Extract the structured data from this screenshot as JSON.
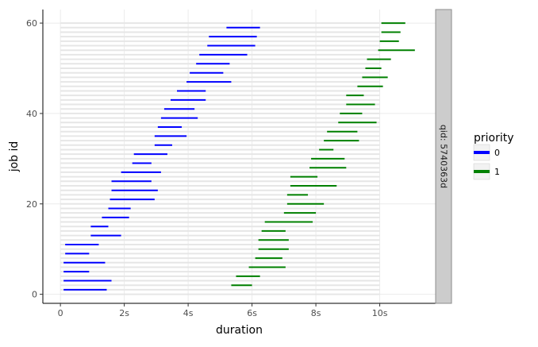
{
  "chart_data": {
    "type": "segment",
    "xlabel": "duration",
    "ylabel": "job id",
    "xlim": [
      -0.55,
      11.75
    ],
    "ylim": [
      -2,
      63
    ],
    "x_ticks": [
      {
        "value": 0,
        "label": "0"
      },
      {
        "value": 2,
        "label": "2s"
      },
      {
        "value": 4,
        "label": "4s"
      },
      {
        "value": 6,
        "label": "6s"
      },
      {
        "value": 8,
        "label": "8s"
      },
      {
        "value": 10,
        "label": "10s"
      }
    ],
    "y_ticks": [
      {
        "value": 0,
        "label": "0"
      },
      {
        "value": 20,
        "label": "20"
      },
      {
        "value": 40,
        "label": "40"
      },
      {
        "value": 60,
        "label": "60"
      }
    ],
    "facet_label": "qid: 5740363d",
    "background_bar": {
      "start": 0,
      "end": 10,
      "count": 61,
      "color": "#e6e6e6"
    },
    "legend": {
      "title": "priority",
      "placement": "right",
      "entries": [
        {
          "label": "0",
          "color": "#0000ff"
        },
        {
          "label": "1",
          "color": "#008000"
        }
      ]
    },
    "series": [
      {
        "name": "0",
        "color": "#0000ff",
        "segments": [
          {
            "job": 1,
            "start": 0.1,
            "end": 1.45
          },
          {
            "job": 3,
            "start": 0.1,
            "end": 1.6
          },
          {
            "job": 5,
            "start": 0.1,
            "end": 0.9
          },
          {
            "job": 7,
            "start": 0.1,
            "end": 1.4
          },
          {
            "job": 9,
            "start": 0.15,
            "end": 0.9
          },
          {
            "job": 11,
            "start": 0.15,
            "end": 1.2
          },
          {
            "job": 13,
            "start": 0.95,
            "end": 1.9
          },
          {
            "job": 15,
            "start": 0.95,
            "end": 1.5
          },
          {
            "job": 17,
            "start": 1.3,
            "end": 2.15
          },
          {
            "job": 19,
            "start": 1.5,
            "end": 2.2
          },
          {
            "job": 21,
            "start": 1.55,
            "end": 2.95
          },
          {
            "job": 23,
            "start": 1.6,
            "end": 3.05
          },
          {
            "job": 25,
            "start": 1.6,
            "end": 2.85
          },
          {
            "job": 27,
            "start": 1.9,
            "end": 3.15
          },
          {
            "job": 29,
            "start": 2.25,
            "end": 2.85
          },
          {
            "job": 31,
            "start": 2.3,
            "end": 3.35
          },
          {
            "job": 33,
            "start": 2.95,
            "end": 3.5
          },
          {
            "job": 35,
            "start": 2.95,
            "end": 3.95
          },
          {
            "job": 37,
            "start": 3.05,
            "end": 3.8
          },
          {
            "job": 39,
            "start": 3.15,
            "end": 4.3
          },
          {
            "job": 41,
            "start": 3.25,
            "end": 4.2
          },
          {
            "job": 43,
            "start": 3.45,
            "end": 4.55
          },
          {
            "job": 45,
            "start": 3.65,
            "end": 4.55
          },
          {
            "job": 47,
            "start": 3.95,
            "end": 5.35
          },
          {
            "job": 49,
            "start": 4.05,
            "end": 5.1
          },
          {
            "job": 51,
            "start": 4.25,
            "end": 5.3
          },
          {
            "job": 53,
            "start": 4.35,
            "end": 5.85
          },
          {
            "job": 55,
            "start": 4.6,
            "end": 6.1
          },
          {
            "job": 57,
            "start": 4.65,
            "end": 6.15
          },
          {
            "job": 59,
            "start": 5.2,
            "end": 6.25
          }
        ]
      },
      {
        "name": "1",
        "color": "#008000",
        "segments": [
          {
            "job": 2,
            "start": 5.35,
            "end": 6.0
          },
          {
            "job": 4,
            "start": 5.5,
            "end": 6.25
          },
          {
            "job": 6,
            "start": 5.9,
            "end": 7.05
          },
          {
            "job": 8,
            "start": 6.1,
            "end": 6.95
          },
          {
            "job": 10,
            "start": 6.2,
            "end": 7.15
          },
          {
            "job": 12,
            "start": 6.2,
            "end": 7.15
          },
          {
            "job": 14,
            "start": 6.3,
            "end": 7.05
          },
          {
            "job": 16,
            "start": 6.4,
            "end": 7.9
          },
          {
            "job": 18,
            "start": 7.0,
            "end": 8.0
          },
          {
            "job": 20,
            "start": 7.1,
            "end": 8.25
          },
          {
            "job": 22,
            "start": 7.1,
            "end": 7.75
          },
          {
            "job": 24,
            "start": 7.2,
            "end": 8.65
          },
          {
            "job": 26,
            "start": 7.2,
            "end": 8.05
          },
          {
            "job": 28,
            "start": 7.8,
            "end": 8.95
          },
          {
            "job": 30,
            "start": 7.85,
            "end": 8.9
          },
          {
            "job": 32,
            "start": 8.1,
            "end": 8.55
          },
          {
            "job": 34,
            "start": 8.25,
            "end": 9.35
          },
          {
            "job": 36,
            "start": 8.35,
            "end": 9.3
          },
          {
            "job": 38,
            "start": 8.7,
            "end": 9.9
          },
          {
            "job": 40,
            "start": 8.75,
            "end": 9.45
          },
          {
            "job": 42,
            "start": 8.95,
            "end": 9.85
          },
          {
            "job": 44,
            "start": 8.95,
            "end": 9.5
          },
          {
            "job": 46,
            "start": 9.3,
            "end": 10.1
          },
          {
            "job": 48,
            "start": 9.45,
            "end": 10.25
          },
          {
            "job": 50,
            "start": 9.55,
            "end": 10.05
          },
          {
            "job": 52,
            "start": 9.6,
            "end": 10.35
          },
          {
            "job": 54,
            "start": 9.95,
            "end": 11.1
          },
          {
            "job": 56,
            "start": 10.0,
            "end": 10.6
          },
          {
            "job": 58,
            "start": 10.05,
            "end": 10.65
          },
          {
            "job": 60,
            "start": 10.05,
            "end": 10.8
          }
        ]
      }
    ]
  }
}
